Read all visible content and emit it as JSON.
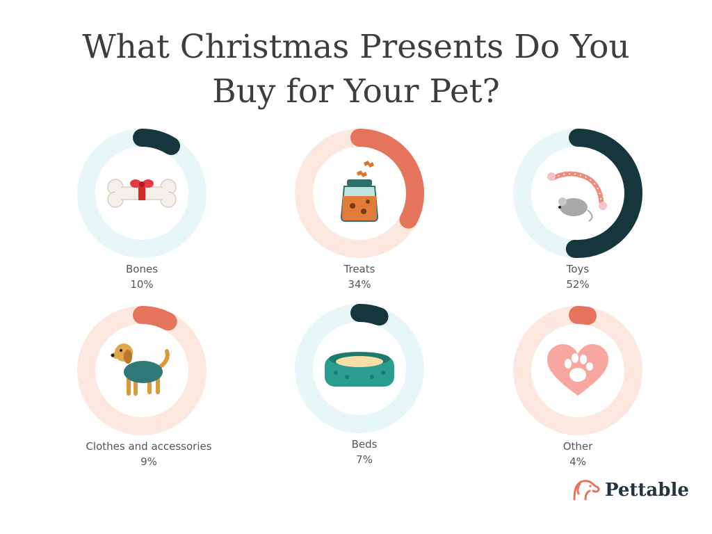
{
  "title_line1": "What Christmas Presents Do You",
  "title_line2": "Buy for Your Pet?",
  "brand": {
    "name": "Pettable",
    "icon": "dog-head-logo-icon"
  },
  "colors": {
    "dark_teal": "#16363d",
    "coral": "#e4755c",
    "light_blue_track": "#e7f7f8",
    "light_peach_track": "#fde8df"
  },
  "chart_data": {
    "type": "donut",
    "title": "What Christmas Presents Do You Buy for Your Pet?",
    "unit": "%",
    "items": [
      {
        "label": "Bones",
        "value": 10,
        "display": "10%",
        "color": "#16363d",
        "track": "#e7f7f8",
        "icon": "gift-bone-icon"
      },
      {
        "label": "Treats",
        "value": 34,
        "display": "34%",
        "color": "#e4755c",
        "track": "#fde8df",
        "icon": "treat-jar-icon"
      },
      {
        "label": "Toys",
        "value": 52,
        "display": "52%",
        "color": "#16363d",
        "track": "#e7f7f8",
        "icon": "rope-mouse-toy-icon"
      },
      {
        "label": "Clothes and accessories",
        "value": 9,
        "display": "9%",
        "color": "#e4755c",
        "track": "#fde8df",
        "icon": "dog-sweater-icon"
      },
      {
        "label": "Beds",
        "value": 7,
        "display": "7%",
        "color": "#16363d",
        "track": "#e7f7f8",
        "icon": "pet-bed-icon"
      },
      {
        "label": "Other",
        "value": 4,
        "display": "4%",
        "color": "#e4755c",
        "track": "#fde8df",
        "icon": "heart-paw-icon"
      }
    ]
  }
}
